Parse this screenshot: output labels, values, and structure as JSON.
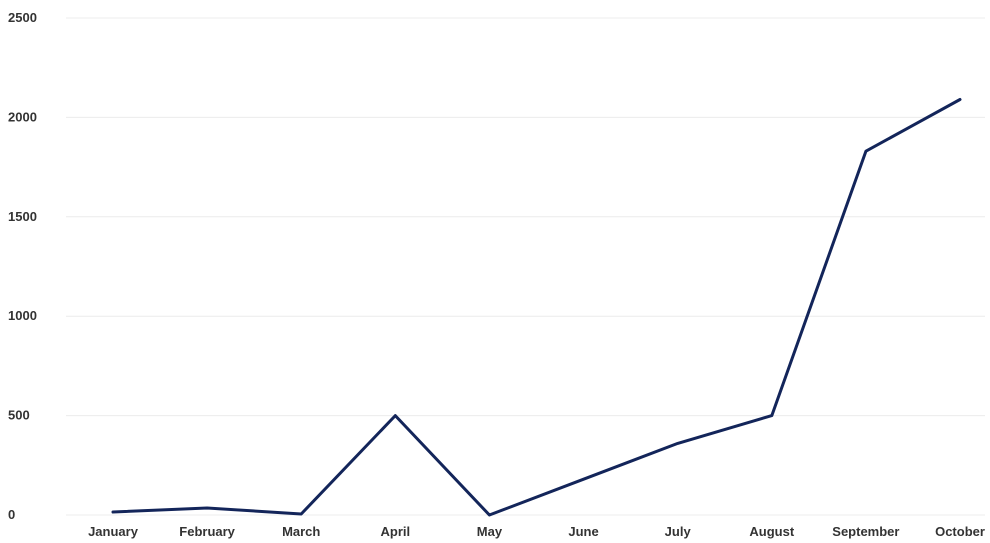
{
  "chart_data": {
    "type": "line",
    "title": "",
    "xlabel": "",
    "ylabel": "",
    "categories": [
      "January",
      "February",
      "March",
      "April",
      "May",
      "June",
      "July",
      "August",
      "September",
      "October"
    ],
    "series": [
      {
        "values": [
          15,
          35,
          5,
          500,
          0,
          180,
          360,
          500,
          1830,
          2090
        ]
      }
    ],
    "ylim": [
      0,
      2500
    ],
    "yticks": [
      0,
      500,
      1000,
      1500,
      2000,
      2500
    ],
    "grid": true,
    "legend": "none",
    "colors": {
      "line": "#13255a",
      "grid": "#ececec",
      "text": "#333333"
    }
  }
}
